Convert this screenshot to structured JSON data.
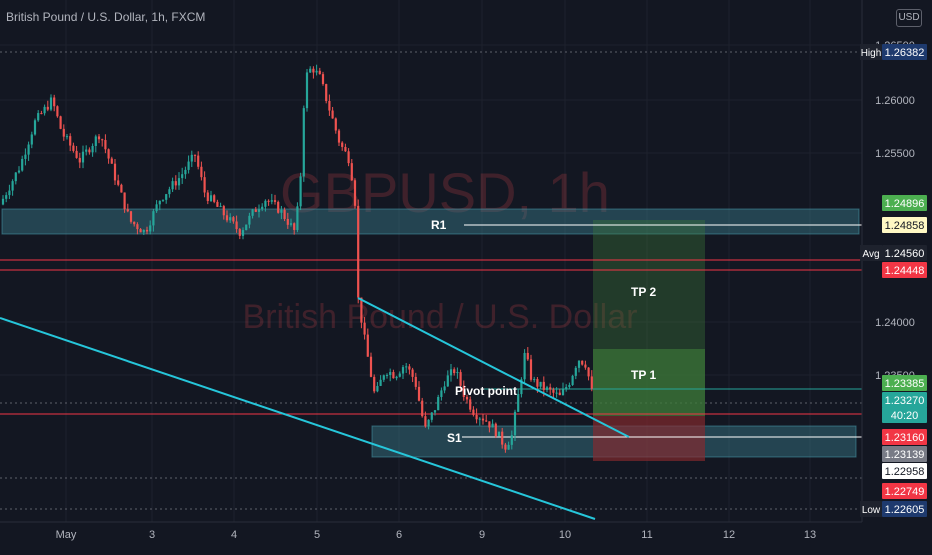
{
  "header": {
    "title": "British Pound / U.S. Dollar, 1h, FXCM",
    "currency": "USD"
  },
  "watermark": {
    "symbol": "GBPUSD, 1h",
    "name": "British Pound / U.S. Dollar"
  },
  "colors": {
    "background": "#131722",
    "grid": "#1e222d",
    "axis_text": "#b2b5be",
    "candle_up": "#26a69a",
    "candle_down": "#ef5350",
    "trendline": "#26c6da",
    "zone": "#3a7d8c",
    "tp_zone": "#3f7d3a",
    "sl_zone": "#8a2a2e",
    "red_line": "#f23645"
  },
  "chart_data": {
    "type": "candlestick",
    "title": "British Pound / U.S. Dollar, 1h, FXCM",
    "x_tick_labels": [
      "May",
      "3",
      "4",
      "5",
      "6",
      "9",
      "10",
      "11",
      "12",
      "13"
    ],
    "y_tick_labels": [
      "1.26500",
      "1.26000",
      "1.25500",
      "1.24000",
      "1.23500"
    ],
    "ylim": [
      1.2243,
      1.2664
    ],
    "price_path": [
      [
        0,
        1.2505
      ],
      [
        20,
        1.254
      ],
      [
        35,
        1.258
      ],
      [
        52,
        1.26
      ],
      [
        62,
        1.257
      ],
      [
        80,
        1.2545
      ],
      [
        100,
        1.257
      ],
      [
        115,
        1.253
      ],
      [
        130,
        1.249
      ],
      [
        145,
        1.248
      ],
      [
        160,
        1.251
      ],
      [
        180,
        1.253
      ],
      [
        195,
        1.255
      ],
      [
        205,
        1.2515
      ],
      [
        220,
        1.25
      ],
      [
        240,
        1.248
      ],
      [
        255,
        1.25
      ],
      [
        265,
        1.251
      ],
      [
        280,
        1.25
      ],
      [
        295,
        1.248
      ],
      [
        300,
        1.252
      ],
      [
        305,
        1.262
      ],
      [
        312,
        1.263
      ],
      [
        320,
        1.262
      ],
      [
        330,
        1.259
      ],
      [
        340,
        1.256
      ],
      [
        350,
        1.2545
      ],
      [
        356,
        1.25
      ],
      [
        358,
        1.242
      ],
      [
        365,
        1.238
      ],
      [
        375,
        1.233
      ],
      [
        385,
        1.2355
      ],
      [
        395,
        1.235
      ],
      [
        405,
        1.236
      ],
      [
        415,
        1.2345
      ],
      [
        425,
        1.23
      ],
      [
        435,
        1.232
      ],
      [
        445,
        1.2345
      ],
      [
        455,
        1.2355
      ],
      [
        465,
        1.233
      ],
      [
        475,
        1.2315
      ],
      [
        485,
        1.231
      ],
      [
        495,
        1.23
      ],
      [
        505,
        1.2285
      ],
      [
        512,
        1.2295
      ],
      [
        518,
        1.233
      ],
      [
        525,
        1.237
      ],
      [
        532,
        1.2345
      ],
      [
        540,
        1.234
      ],
      [
        550,
        1.2335
      ],
      [
        560,
        1.233
      ],
      [
        570,
        1.2345
      ],
      [
        578,
        1.2365
      ],
      [
        586,
        1.236
      ],
      [
        594,
        1.2325
      ]
    ],
    "annotations": {
      "r1_label": "R1",
      "s1_label": "S1",
      "pivot_label": "Pivot point",
      "tp1_label": "TP 1",
      "tp2_label": "TP 2"
    },
    "price_labels": [
      {
        "text": "1.26382",
        "tag": "High",
        "value": 1.26382,
        "color": "#1e3a6e",
        "text_color": "#ffffff"
      },
      {
        "text": "1.24896",
        "value": 1.24896,
        "color": "#4caf50",
        "text_color": "#ffffff"
      },
      {
        "text": "1.24858",
        "value": 1.24858,
        "color": "#fff9c4",
        "text_color": "#131722"
      },
      {
        "text": "1.24560",
        "tag": "Avg",
        "value": 1.2456,
        "color": "#1e222d",
        "text_color": "#ffffff"
      },
      {
        "text": "1.24448",
        "value": 1.24448,
        "color": "#f23645",
        "text_color": "#ffffff"
      },
      {
        "text": "1.23385",
        "value": 1.23385,
        "color": "#4caf50",
        "text_color": "#ffffff"
      },
      {
        "text": "1.23270",
        "value": 1.2327,
        "color": "#26a69a",
        "text_color": "#ffffff"
      },
      {
        "text": "40:20",
        "value": 1.23195,
        "color": "#26a69a",
        "text_color": "#ffffff"
      },
      {
        "text": "1.23160",
        "value": 1.2316,
        "color": "#f23645",
        "text_color": "#ffffff"
      },
      {
        "text": "1.23139",
        "value": 1.23139,
        "color": "#787b86",
        "text_color": "#ffffff"
      },
      {
        "text": "1.22958",
        "value": 1.22958,
        "color": "#ffffff",
        "text_color": "#131722"
      },
      {
        "text": "1.22749",
        "value": 1.22749,
        "color": "#f23645",
        "text_color": "#ffffff"
      },
      {
        "text": "1.22605",
        "tag": "Low",
        "value": 1.22605,
        "color": "#1e3a6e",
        "text_color": "#ffffff"
      }
    ]
  }
}
